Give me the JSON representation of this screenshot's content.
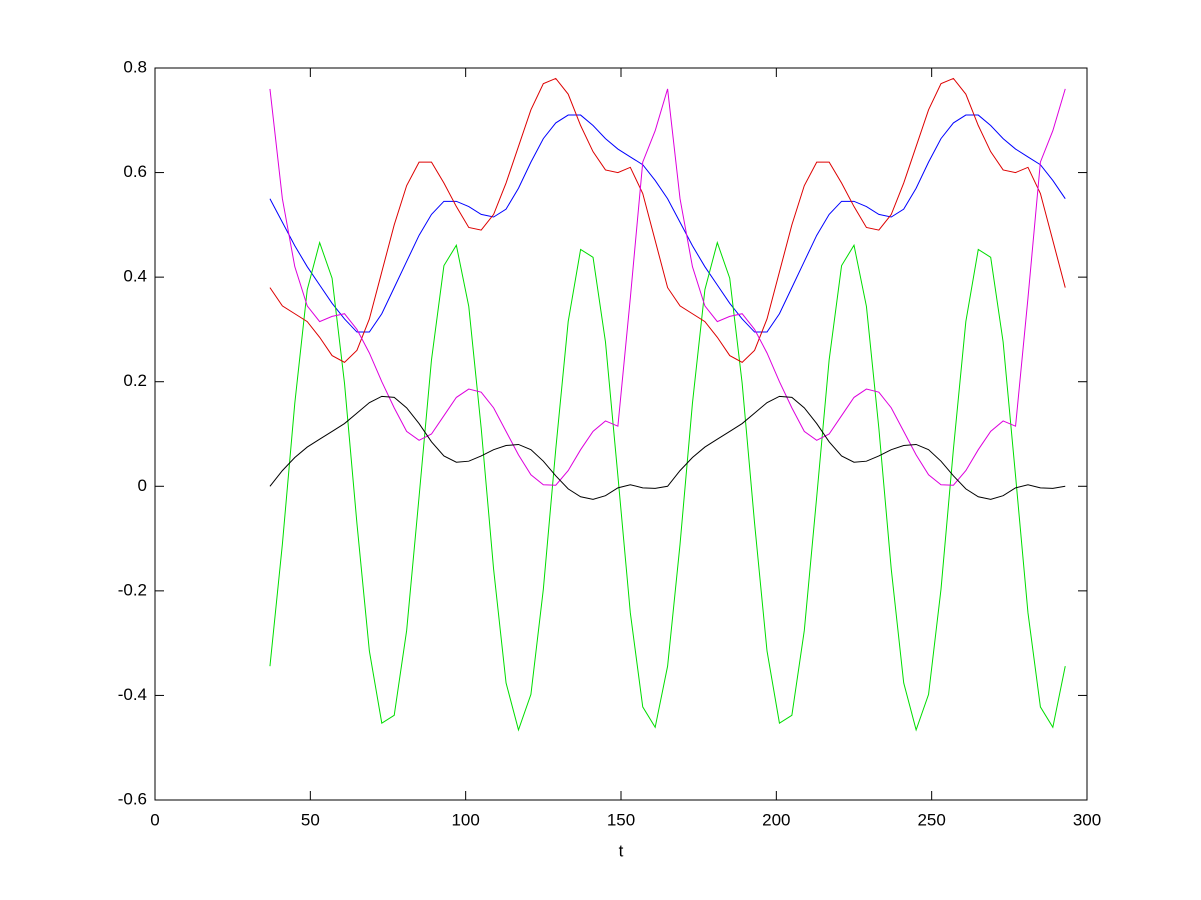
{
  "chart_data": {
    "type": "line",
    "x_label": "t",
    "x": [
      37,
      41,
      45,
      49,
      53,
      57,
      61,
      65,
      69,
      73,
      77,
      81,
      85,
      89,
      93,
      97,
      101,
      105,
      109,
      113,
      117,
      121,
      125,
      129,
      133,
      137,
      141,
      145,
      149,
      153,
      157,
      161,
      165,
      169,
      173,
      177,
      181,
      185,
      189,
      193,
      197,
      201,
      205,
      209,
      213,
      217,
      221,
      225,
      229,
      233,
      237,
      241,
      245,
      249,
      253,
      257,
      261,
      265,
      269,
      273,
      277,
      281,
      285,
      289,
      293
    ],
    "series": [
      {
        "color": "#0000ff",
        "values": [
          0.55,
          0.505,
          0.46,
          0.42,
          0.385,
          0.35,
          0.32,
          0.295,
          0.295,
          0.33,
          0.38,
          0.43,
          0.48,
          0.52,
          0.545,
          0.545,
          0.535,
          0.52,
          0.515,
          0.53,
          0.57,
          0.62,
          0.665,
          0.695,
          0.71,
          0.71,
          0.69,
          0.665,
          0.645,
          0.63,
          0.615,
          0.585,
          0.55,
          0.505,
          0.46,
          0.42,
          0.385,
          0.35,
          0.32,
          0.295,
          0.295,
          0.33,
          0.38,
          0.43,
          0.48,
          0.52,
          0.545,
          0.545,
          0.535,
          0.52,
          0.515,
          0.53,
          0.57,
          0.62,
          0.665,
          0.695,
          0.71,
          0.71,
          0.69,
          0.665,
          0.645,
          0.63,
          0.615,
          0.585,
          0.55
        ]
      },
      {
        "color": "#00dd00",
        "values": [
          -0.344,
          -0.111,
          0.159,
          0.376,
          0.466,
          0.398,
          0.197,
          -0.071,
          -0.315,
          -0.453,
          -0.438,
          -0.276,
          -0.02,
          0.242,
          0.422,
          0.461,
          0.344,
          0.111,
          -0.159,
          -0.376,
          -0.466,
          -0.398,
          -0.197,
          0.071,
          0.315,
          0.453,
          0.438,
          0.276,
          0.02,
          -0.242,
          -0.422,
          -0.461,
          -0.344,
          -0.111,
          0.159,
          0.376,
          0.466,
          0.398,
          0.197,
          -0.071,
          -0.315,
          -0.453,
          -0.438,
          -0.276,
          -0.02,
          0.242,
          0.422,
          0.461,
          0.344,
          0.111,
          -0.159,
          -0.376,
          -0.466,
          -0.398,
          -0.197,
          0.071,
          0.315,
          0.453,
          0.438,
          0.276,
          0.02,
          -0.242,
          -0.422,
          -0.461,
          -0.344
        ]
      },
      {
        "color": "#dd0000",
        "values": [
          0.38,
          0.345,
          0.33,
          0.315,
          0.285,
          0.25,
          0.237,
          0.26,
          0.32,
          0.41,
          0.5,
          0.575,
          0.62,
          0.62,
          0.58,
          0.535,
          0.495,
          0.49,
          0.52,
          0.58,
          0.65,
          0.72,
          0.77,
          0.78,
          0.75,
          0.69,
          0.64,
          0.605,
          0.6,
          0.61,
          0.56,
          0.47,
          0.38,
          0.345,
          0.33,
          0.315,
          0.285,
          0.25,
          0.237,
          0.26,
          0.32,
          0.41,
          0.5,
          0.575,
          0.62,
          0.62,
          0.58,
          0.535,
          0.495,
          0.49,
          0.52,
          0.58,
          0.65,
          0.72,
          0.77,
          0.78,
          0.75,
          0.69,
          0.64,
          0.605,
          0.6,
          0.61,
          0.56,
          0.47,
          0.38
        ]
      },
      {
        "color": "#dd00dd",
        "values": [
          0.76,
          0.55,
          0.42,
          0.345,
          0.315,
          0.325,
          0.33,
          0.3,
          0.255,
          0.2,
          0.15,
          0.105,
          0.088,
          0.1,
          0.135,
          0.17,
          0.186,
          0.18,
          0.15,
          0.105,
          0.06,
          0.022,
          0.003,
          0.002,
          0.03,
          0.07,
          0.105,
          0.125,
          0.115,
          0.36,
          0.62,
          0.68,
          0.76,
          0.55,
          0.42,
          0.345,
          0.315,
          0.325,
          0.33,
          0.3,
          0.255,
          0.2,
          0.15,
          0.105,
          0.088,
          0.1,
          0.135,
          0.17,
          0.186,
          0.18,
          0.15,
          0.105,
          0.06,
          0.022,
          0.003,
          0.002,
          0.03,
          0.07,
          0.105,
          0.125,
          0.115,
          0.36,
          0.62,
          0.68,
          0.76
        ]
      },
      {
        "color": "#000000",
        "values": [
          0,
          0.03,
          0.055,
          0.075,
          0.09,
          0.105,
          0.12,
          0.14,
          0.16,
          0.172,
          0.17,
          0.15,
          0.12,
          0.085,
          0.058,
          0.046,
          0.048,
          0.058,
          0.07,
          0.078,
          0.08,
          0.07,
          0.048,
          0.02,
          -0.005,
          -0.02,
          -0.025,
          -0.018,
          -0.003,
          0.003,
          -0.003,
          -0.004,
          0,
          0.03,
          0.055,
          0.075,
          0.09,
          0.105,
          0.12,
          0.14,
          0.16,
          0.172,
          0.17,
          0.15,
          0.12,
          0.085,
          0.058,
          0.046,
          0.048,
          0.058,
          0.07,
          0.078,
          0.08,
          0.07,
          0.048,
          0.02,
          -0.005,
          -0.02,
          -0.025,
          -0.018,
          -0.003,
          0.003,
          -0.003,
          -0.004,
          0
        ]
      }
    ],
    "xlim": [
      0,
      300
    ],
    "xticks": [
      0,
      50,
      100,
      150,
      200,
      250,
      300
    ],
    "ylim": [
      -0.6,
      0.8
    ],
    "yticks": [
      -0.6,
      -0.4,
      -0.2,
      0,
      0.2,
      0.4,
      0.6,
      0.8
    ],
    "grid": false
  }
}
